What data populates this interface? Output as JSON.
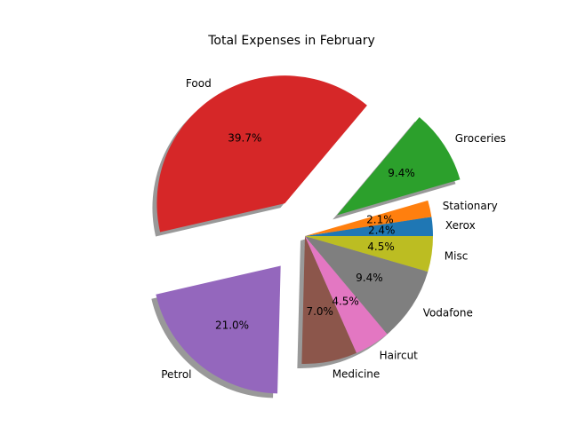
{
  "chart_data": {
    "type": "pie",
    "title": "Total Expenses in February",
    "start_angle_deg": 0,
    "direction": "counterclockwise",
    "shadow": true,
    "legend": "none",
    "slices": [
      {
        "label": "Xerox",
        "pct_label": "2.4%",
        "value": 2.4,
        "color": "#1f77b4",
        "exploded": false
      },
      {
        "label": "Stationary",
        "pct_label": "2.1%",
        "value": 2.1,
        "color": "#ff7f0e",
        "exploded": false
      },
      {
        "label": "Groceries",
        "pct_label": "9.4%",
        "value": 9.4,
        "color": "#2ca02c",
        "exploded": true
      },
      {
        "label": "Food",
        "pct_label": "39.7%",
        "value": 39.7,
        "color": "#d62728",
        "exploded": true
      },
      {
        "label": "Petrol",
        "pct_label": "21.0%",
        "value": 21.0,
        "color": "#9467bd",
        "exploded": true
      },
      {
        "label": "Medicine",
        "pct_label": "7.0%",
        "value": 7.0,
        "color": "#8c564b",
        "exploded": false
      },
      {
        "label": "Haircut",
        "pct_label": "4.5%",
        "value": 4.5,
        "color": "#e377c2",
        "exploded": false
      },
      {
        "label": "Vodafone",
        "pct_label": "9.4%",
        "value": 9.4,
        "color": "#7f7f7f",
        "exploded": false
      },
      {
        "label": "Misc",
        "pct_label": "4.5%",
        "value": 4.5,
        "color": "#bcbd22",
        "exploded": false
      }
    ]
  }
}
